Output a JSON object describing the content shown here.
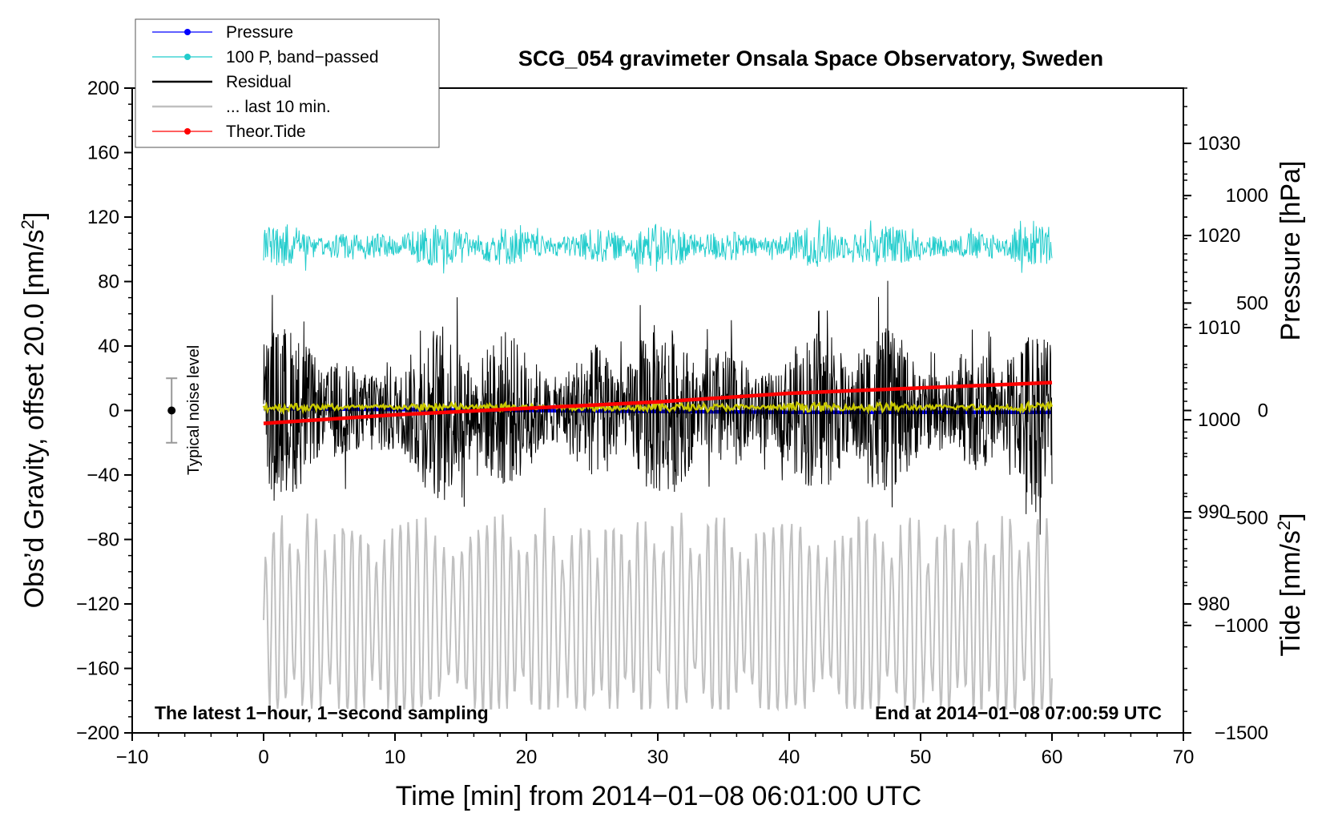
{
  "chart_data": {
    "type": "line",
    "title": "SCG_054 gravimeter Onsala Space Observatory, Sweden",
    "xlabel": "Time [min] from 2014−01−08 06:01:00 UTC",
    "ylabel_left_text": "Obs’d Gravity, offset 20.0 [nm/s",
    "ylabel_left_sup": "2",
    "ylabel_left_close": "]",
    "ylabel_right_pressure": "Pressure [hPa]",
    "ylabel_right_tide_text": "Tide [nm/s",
    "ylabel_right_tide_sup": "2",
    "ylabel_right_tide_close": "]",
    "xlim": [
      -10,
      70
    ],
    "ylim": [
      -200,
      200
    ],
    "pressure_ylim": [
      966,
      1036
    ],
    "tide_ylim": [
      -1500,
      1500
    ],
    "x_ticks": [
      -10,
      0,
      10,
      20,
      30,
      40,
      50,
      60,
      70
    ],
    "x_tick_labels": [
      "−10",
      "0",
      "10",
      "20",
      "30",
      "40",
      "50",
      "60",
      "70"
    ],
    "y_ticks": [
      -200,
      -160,
      -120,
      -80,
      -40,
      0,
      40,
      80,
      120,
      160,
      200
    ],
    "y_tick_labels": [
      "−200",
      "−160",
      "−120",
      "−80",
      "−40",
      "0",
      "40",
      "80",
      "120",
      "160",
      "200"
    ],
    "pressure_ticks": [
      980,
      990,
      1000,
      1010,
      1020,
      1030
    ],
    "pressure_tick_labels": [
      "980",
      "990",
      "1000",
      "1010",
      "1020",
      "1030"
    ],
    "tide_ticks": [
      -1500,
      -1000,
      -500,
      0,
      500,
      1000
    ],
    "tide_tick_labels": [
      "−1500",
      "−1000",
      "−500",
      "0",
      "500",
      "1000"
    ],
    "note_left": "The latest 1−hour, 1−second sampling",
    "note_right": "End at 2014−01−08 07:00:59 UTC",
    "noise_bar": {
      "label": "Typical noise level",
      "x": -7,
      "y_center": 0,
      "y_low": -20,
      "y_high": 20
    },
    "legend": [
      {
        "label": "Pressure",
        "color": "#0000ff",
        "marker": true
      },
      {
        "label": "100 P, band−passed",
        "color": "#22cccc",
        "marker": true
      },
      {
        "label": "Residual",
        "color": "#000000",
        "marker": false
      },
      {
        "label": "... last 10 min.",
        "color": "#c0c0c0",
        "marker": false
      },
      {
        "label": "Theor.Tide",
        "color": "#ff0000",
        "marker": true
      }
    ],
    "series": [
      {
        "name": "Pressure",
        "color": "#0000ff",
        "axis": "pressure",
        "x": [
          0,
          10,
          20,
          30,
          40,
          50,
          60
        ],
        "y": [
          1001.2,
          1001.1,
          1001.0,
          1000.9,
          1000.8,
          1000.8,
          1000.8
        ]
      },
      {
        "name": "100 P, band−passed",
        "color": "#22cccc",
        "axis": "left",
        "x_range": [
          0,
          60
        ],
        "mean": 102,
        "envelope_min": 85,
        "envelope_max": 122
      },
      {
        "name": "Residual",
        "color": "#000000",
        "axis": "left",
        "x_range": [
          0,
          60
        ],
        "mean": 0,
        "envelope_min": -77,
        "envelope_max": 92
      },
      {
        "name": "Smoothed residual",
        "color": "#c8c800",
        "axis": "left",
        "x_range": [
          0,
          60
        ],
        "mean": 2,
        "envelope_min": -3,
        "envelope_max": 7
      },
      {
        "name": "... last 10 min.",
        "color": "#c0c0c0",
        "axis": "left",
        "x_range": [
          0,
          60
        ],
        "mean": -130,
        "envelope_min": -185,
        "envelope_max": -58
      },
      {
        "name": "Theor.Tide",
        "color": "#ff0000",
        "axis": "tide",
        "x": [
          0,
          10,
          20,
          30,
          40,
          50,
          60
        ],
        "y": [
          -60,
          -20,
          10,
          40,
          80,
          105,
          130
        ]
      }
    ]
  }
}
